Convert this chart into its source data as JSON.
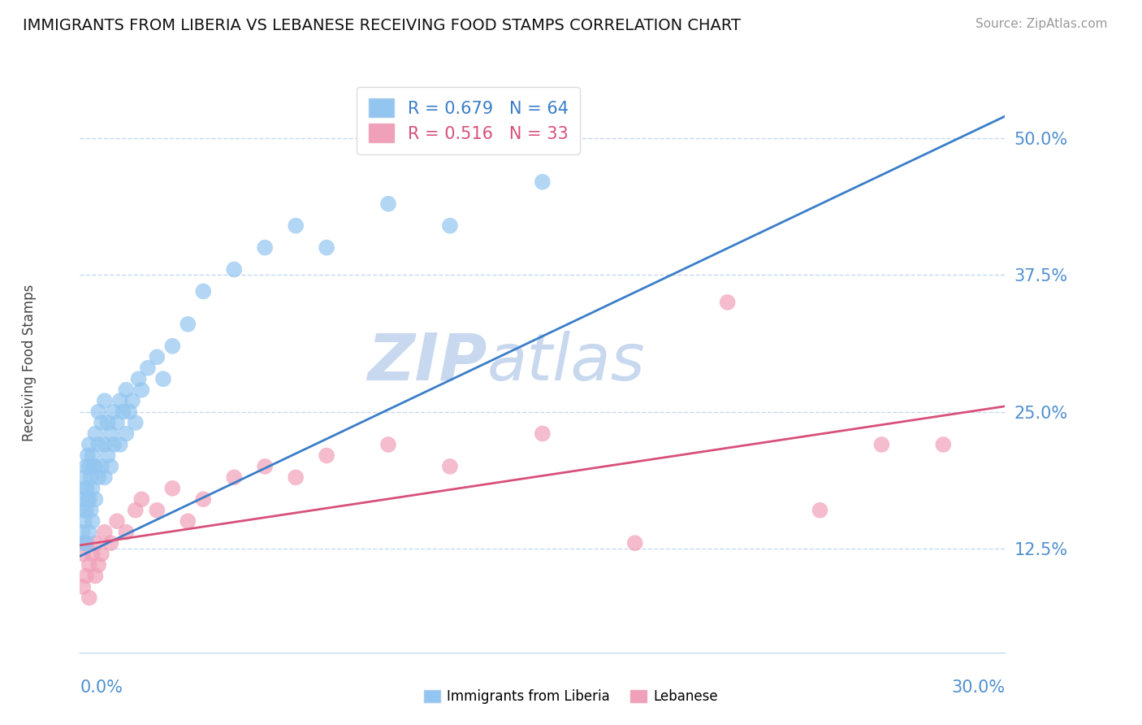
{
  "title": "IMMIGRANTS FROM LIBERIA VS LEBANESE RECEIVING FOOD STAMPS CORRELATION CHART",
  "source_text": "Source: ZipAtlas.com",
  "xlabel_bottom_left": "0.0%",
  "xlabel_bottom_right": "30.0%",
  "ylabel": "Receiving Food Stamps",
  "yticks": [
    0.125,
    0.25,
    0.375,
    0.5
  ],
  "ytick_labels": [
    "12.5%",
    "25.0%",
    "37.5%",
    "50.0%"
  ],
  "xlim": [
    0.0,
    0.3
  ],
  "ylim": [
    0.03,
    0.56
  ],
  "liberia_R": 0.679,
  "liberia_N": 64,
  "lebanese_R": 0.516,
  "lebanese_N": 33,
  "liberia_color": "#92C5F0",
  "lebanese_color": "#F0A0B8",
  "liberia_line_color": "#3A7EC8",
  "lebanese_line_color": "#D8507A",
  "legend_label_liberia": "Immigrants from Liberia",
  "legend_label_lebanese": "Lebanese",
  "watermark_zip": "ZIP",
  "watermark_atlas": "atlas",
  "watermark_color": "#C8D8EE",
  "background_color": "#FFFFFF",
  "grid_color": "#C8D8EE",
  "title_color": "#111111",
  "tick_label_color": "#5090D0",
  "liberia_scatter_x": [
    0.0008,
    0.001,
    0.001,
    0.0012,
    0.0014,
    0.0015,
    0.0018,
    0.002,
    0.002,
    0.002,
    0.0022,
    0.0025,
    0.0025,
    0.003,
    0.003,
    0.003,
    0.003,
    0.0035,
    0.0035,
    0.004,
    0.004,
    0.004,
    0.0045,
    0.005,
    0.005,
    0.005,
    0.006,
    0.006,
    0.006,
    0.007,
    0.007,
    0.008,
    0.008,
    0.008,
    0.009,
    0.009,
    0.01,
    0.01,
    0.011,
    0.011,
    0.012,
    0.013,
    0.013,
    0.014,
    0.015,
    0.015,
    0.016,
    0.017,
    0.018,
    0.019,
    0.02,
    0.022,
    0.025,
    0.027,
    0.03,
    0.035,
    0.04,
    0.05,
    0.06,
    0.07,
    0.08,
    0.1,
    0.12,
    0.15
  ],
  "liberia_scatter_y": [
    0.14,
    0.13,
    0.17,
    0.16,
    0.15,
    0.19,
    0.18,
    0.13,
    0.16,
    0.2,
    0.18,
    0.17,
    0.21,
    0.14,
    0.17,
    0.2,
    0.22,
    0.16,
    0.19,
    0.15,
    0.18,
    0.21,
    0.2,
    0.17,
    0.2,
    0.23,
    0.19,
    0.22,
    0.25,
    0.2,
    0.24,
    0.19,
    0.22,
    0.26,
    0.21,
    0.24,
    0.2,
    0.23,
    0.22,
    0.25,
    0.24,
    0.22,
    0.26,
    0.25,
    0.23,
    0.27,
    0.25,
    0.26,
    0.24,
    0.28,
    0.27,
    0.29,
    0.3,
    0.28,
    0.31,
    0.33,
    0.36,
    0.38,
    0.4,
    0.42,
    0.4,
    0.44,
    0.42,
    0.46
  ],
  "lebanese_scatter_x": [
    0.001,
    0.001,
    0.002,
    0.002,
    0.003,
    0.003,
    0.004,
    0.005,
    0.005,
    0.006,
    0.007,
    0.008,
    0.01,
    0.012,
    0.015,
    0.018,
    0.02,
    0.025,
    0.03,
    0.035,
    0.04,
    0.05,
    0.06,
    0.07,
    0.08,
    0.1,
    0.12,
    0.15,
    0.18,
    0.21,
    0.24,
    0.26,
    0.28
  ],
  "lebanese_scatter_y": [
    0.12,
    0.09,
    0.1,
    0.13,
    0.11,
    0.08,
    0.12,
    0.1,
    0.13,
    0.11,
    0.12,
    0.14,
    0.13,
    0.15,
    0.14,
    0.16,
    0.17,
    0.16,
    0.18,
    0.15,
    0.17,
    0.19,
    0.2,
    0.19,
    0.21,
    0.22,
    0.2,
    0.23,
    0.13,
    0.35,
    0.16,
    0.22,
    0.22
  ],
  "liberia_line_x0": 0.0,
  "liberia_line_y0": 0.118,
  "liberia_line_x1": 0.3,
  "liberia_line_y1": 0.52,
  "lebanese_line_x0": 0.0,
  "lebanese_line_y0": 0.128,
  "lebanese_line_x1": 0.3,
  "lebanese_line_y1": 0.255
}
